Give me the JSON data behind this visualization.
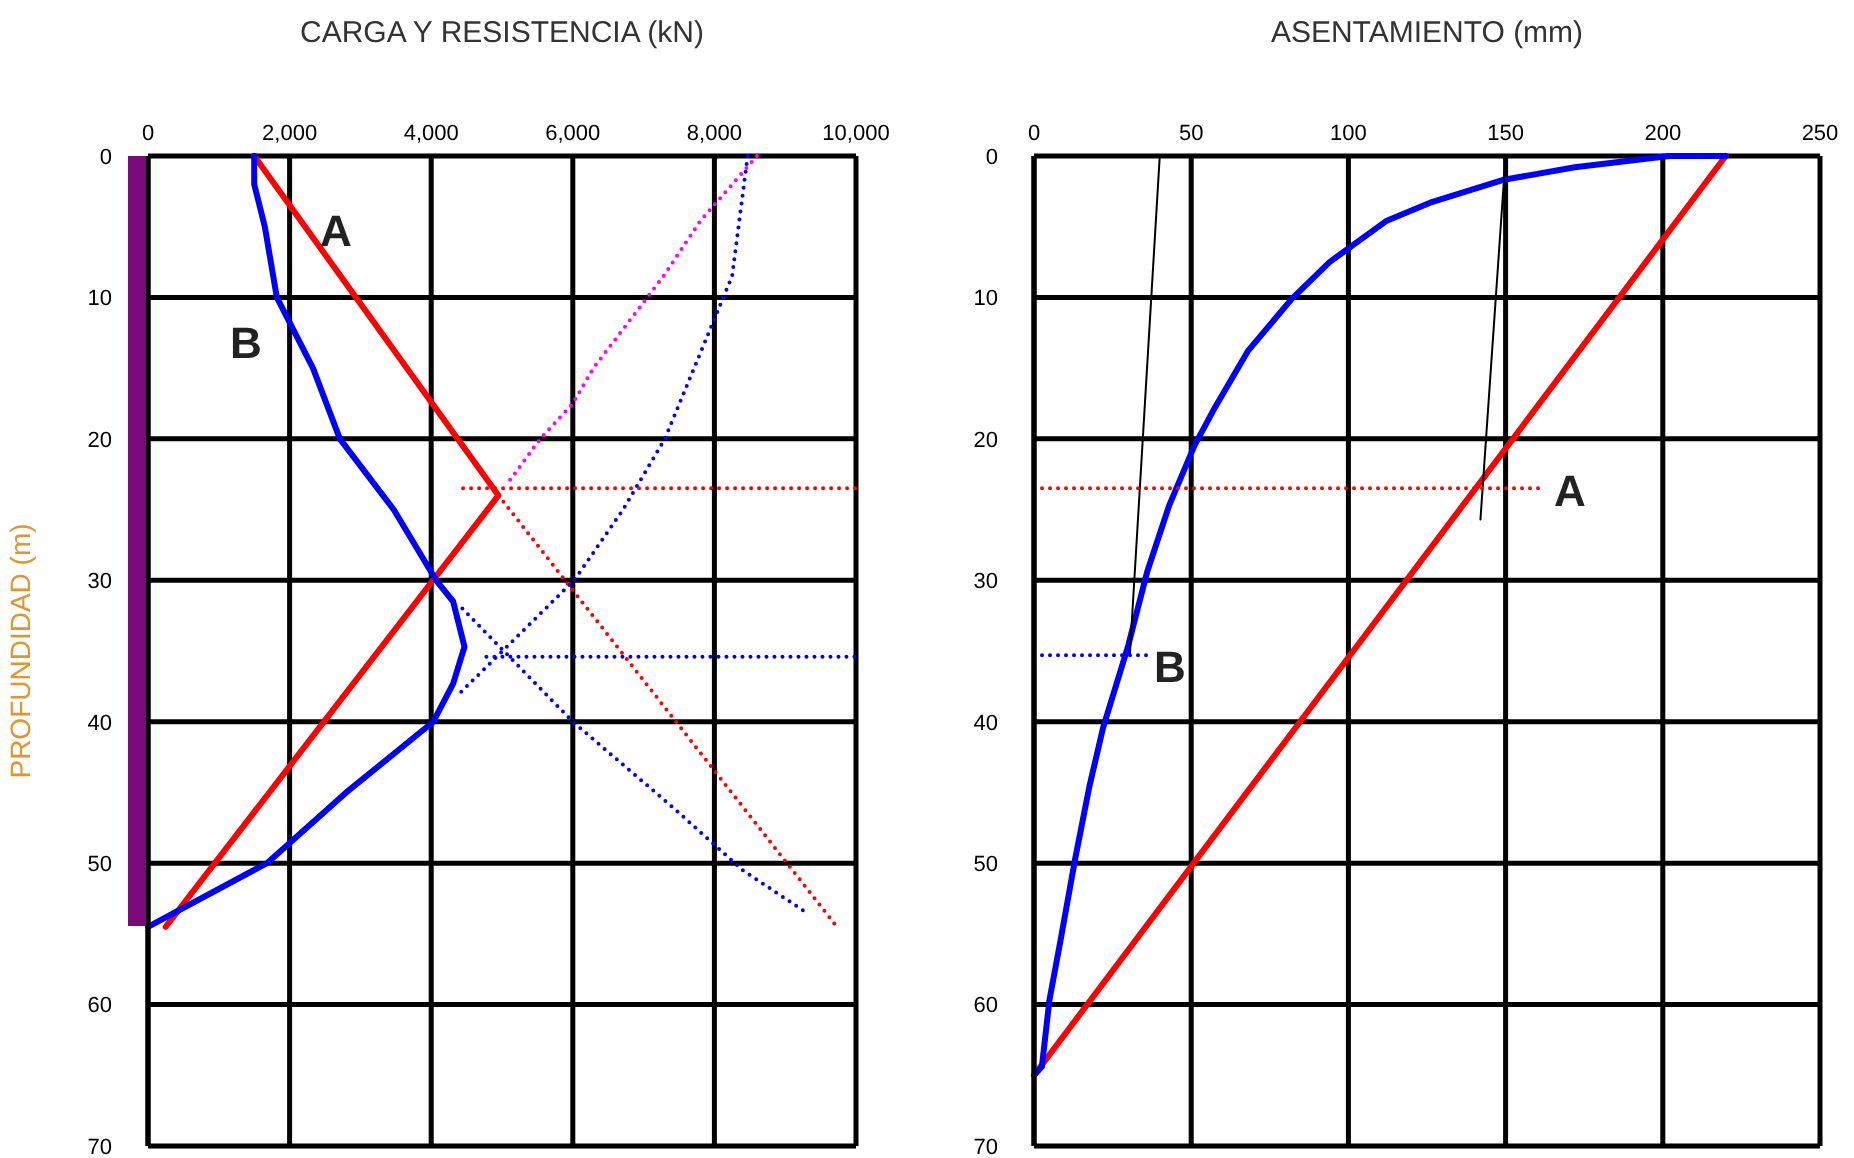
{
  "chart_data": [
    {
      "type": "line",
      "orientation": "horizontal",
      "xlabel": "CARGA Y RESISTENCIA (kN)",
      "ylabel": "PROFUNDIDAD (m)",
      "xlim": [
        0,
        10000
      ],
      "xticks": [
        0,
        {
          "value": 2000,
          "label": "2,000"
        },
        {
          "value": 4000,
          "label": "4,000"
        },
        {
          "value": 6000,
          "label": "6,000"
        },
        {
          "value": 8000,
          "label": "8,000"
        },
        {
          "value": 10000,
          "label": "10,000"
        }
      ],
      "ylim": [
        70,
        0
      ],
      "yticks": [
        0,
        10,
        20,
        30,
        40,
        50,
        60,
        70
      ],
      "grid": true,
      "series": [
        {
          "color": "#ff0000",
          "x": [
            0,
            24,
            54.5
          ],
          "values": [
            1500,
            4950,
            250
          ]
        },
        {
          "color": "#0000ff",
          "x": [
            0,
            2,
            5,
            10,
            15,
            20,
            25,
            30,
            31.5,
            34.7,
            37.3,
            40,
            45,
            50,
            54.5
          ],
          "values": [
            1500,
            1500,
            1650,
            1820,
            2330,
            2710,
            3470,
            4070,
            4310,
            4470,
            4310,
            4030,
            2800,
            1680,
            0
          ]
        },
        {
          "color": "#ff0000",
          "line_style": "dotted",
          "x": [
            24,
            54.5
          ],
          "values": [
            4950,
            9730
          ]
        },
        {
          "color": "#ff00ff",
          "line_style": "dotted",
          "x": [
            0,
            4.6,
            8.5,
            15,
            17.5,
            20,
            23
          ],
          "values": [
            8600,
            7800,
            7280,
            6290,
            6000,
            5540,
            5100
          ]
        },
        {
          "color": "#0000ff",
          "line_style": "dotted",
          "x": [
            0,
            8.5,
            20,
            25,
            30,
            38
          ],
          "values": [
            8470,
            8250,
            7300,
            6710,
            6020,
            4400
          ]
        },
        {
          "color": "#0000ff",
          "line_style": "dotted",
          "x": [
            32,
            40,
            46,
            50.5,
            53.5
          ],
          "values": [
            4440,
            6000,
            7400,
            8400,
            9300
          ]
        },
        {
          "color": "#ff0000",
          "line_style": "dotted",
          "x": [
            23.5,
            23.5
          ],
          "values": [
            4450,
            10000
          ]
        },
        {
          "color": "#0000ff",
          "line_style": "dotted",
          "x": [
            35.4,
            35.4
          ],
          "values": [
            4780,
            10000
          ]
        }
      ],
      "annotations": [
        "A",
        "B"
      ]
    },
    {
      "type": "line",
      "orientation": "horizontal",
      "xlabel": "ASENTAMIENTO (mm)",
      "xlim": [
        0,
        250
      ],
      "xticks": [
        0,
        50,
        100,
        150,
        200,
        250
      ],
      "ylim": [
        70,
        0
      ],
      "yticks": [
        0,
        10,
        20,
        30,
        40,
        50,
        60,
        70
      ],
      "grid": true,
      "series": [
        {
          "color": "#ff0000",
          "x": [
            0,
            65
          ],
          "values": [
            220,
            0
          ]
        },
        {
          "color": "#0000ff",
          "x": [
            0,
            0,
            0.8,
            1.7,
            3.3,
            4.6,
            7.5,
            10.1,
            13.8,
            18,
            20.5,
            24.7,
            29.4,
            34.6,
            40.4,
            44.6,
            49.8,
            55.5,
            59.7,
            64.4,
            65
          ],
          "values": [
            220,
            202,
            172,
            149,
            126,
            112,
            94,
            82,
            68,
            57,
            51,
            43,
            36,
            30,
            22,
            17.6,
            13,
            8.4,
            4.9,
            2.5,
            0
          ]
        },
        {
          "color": "#000000",
          "x": [
            0,
            35.2
          ],
          "values": [
            40,
            30.5
          ]
        },
        {
          "color": "#000000",
          "x": [
            0,
            25.7
          ],
          "values": [
            150,
            142
          ]
        },
        {
          "color": "#ff0000",
          "line_style": "dotted",
          "x": [
            23.5,
            23.5
          ],
          "values": [
            0,
            162
          ]
        },
        {
          "color": "#0000ff",
          "line_style": "dotted",
          "x": [
            35.3,
            35.3
          ],
          "values": [
            0,
            36
          ]
        }
      ],
      "annotations": [
        "A",
        "B"
      ]
    }
  ]
}
